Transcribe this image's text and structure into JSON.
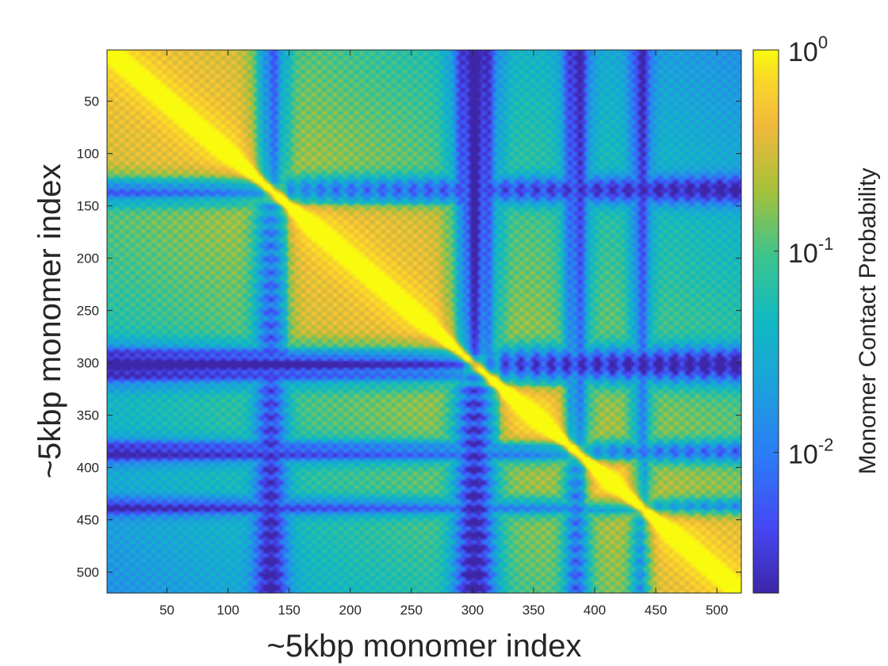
{
  "chart_data": {
    "type": "heatmap",
    "title": "",
    "xlabel": "~5kbp monomer index",
    "ylabel": "~5kbp monomer index",
    "xlim": [
      1,
      520
    ],
    "ylim": [
      1,
      520
    ],
    "y_reversed": true,
    "x_ticks": [
      50,
      100,
      150,
      200,
      250,
      300,
      350,
      400,
      450,
      500
    ],
    "y_ticks": [
      50,
      100,
      150,
      200,
      250,
      300,
      350,
      400,
      450,
      500
    ],
    "colorbar": {
      "label": "Monomer Contact Probability",
      "scale": "log",
      "range": [
        0.002,
        1
      ],
      "ticks": [
        {
          "value": 1,
          "base": "10",
          "exp": "0"
        },
        {
          "value": 0.1,
          "base": "10",
          "exp": "-1"
        },
        {
          "value": 0.01,
          "base": "10",
          "exp": "-2"
        }
      ],
      "colormap": "parula"
    },
    "features": {
      "diagonal": "high contact along main diagonal",
      "low_contact_bands_at": [
        135,
        300,
        385,
        440
      ],
      "domain_boundaries": [
        125,
        135,
        150,
        290,
        325,
        375,
        395,
        440
      ]
    }
  }
}
